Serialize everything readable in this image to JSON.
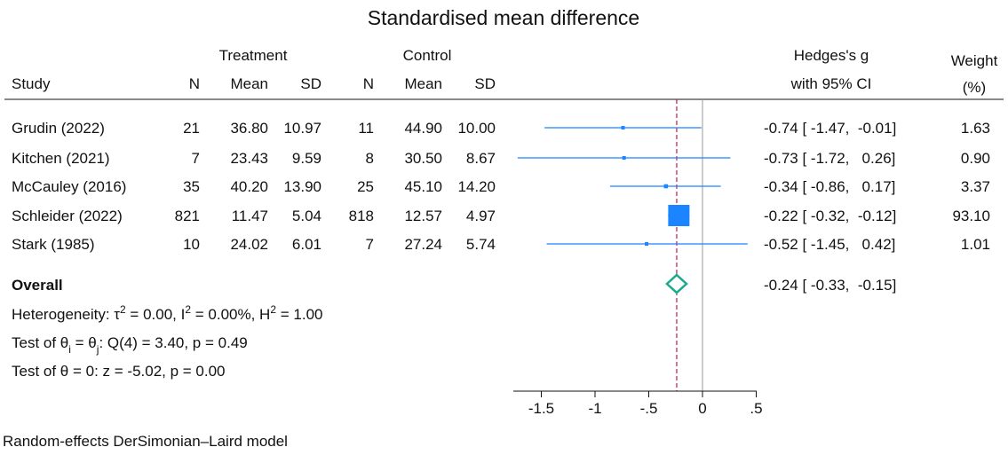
{
  "chart_data": {
    "type": "forest",
    "title": "Standardised mean difference",
    "column_headers": {
      "group_treatment": "Treatment",
      "group_control": "Control",
      "study": "Study",
      "n1": "N",
      "mean1": "Mean",
      "sd1": "SD",
      "n2": "N",
      "mean2": "Mean",
      "sd2": "SD",
      "effect_line1": "Hedges's g",
      "effect_line2": "with 95% CI",
      "weight_line1": "Weight",
      "weight_line2": "(%)"
    },
    "studies": [
      {
        "study": "Grudin (2022)",
        "n1": "21",
        "mean1": "36.80",
        "sd1": "10.97",
        "n2": "11",
        "mean2": "44.90",
        "sd2": "10.00",
        "g": -0.74,
        "lo": -1.47,
        "hi": -0.01,
        "ci_text": "-0.74 [ -1.47,  -0.01]",
        "weight": 1.63,
        "weight_text": "1.63"
      },
      {
        "study": "Kitchen (2021)",
        "n1": "7",
        "mean1": "23.43",
        "sd1": "9.59",
        "n2": "8",
        "mean2": "30.50",
        "sd2": "8.67",
        "g": -0.73,
        "lo": -1.72,
        "hi": 0.26,
        "ci_text": "-0.73 [ -1.72,   0.26]",
        "weight": 0.9,
        "weight_text": "0.90"
      },
      {
        "study": "McCauley (2016)",
        "n1": "35",
        "mean1": "40.20",
        "sd1": "13.90",
        "n2": "25",
        "mean2": "45.10",
        "sd2": "14.20",
        "g": -0.34,
        "lo": -0.86,
        "hi": 0.17,
        "ci_text": "-0.34 [ -0.86,   0.17]",
        "weight": 3.37,
        "weight_text": "3.37"
      },
      {
        "study": "Schleider (2022)",
        "n1": "821",
        "mean1": "11.47",
        "sd1": "5.04",
        "n2": "818",
        "mean2": "12.57",
        "sd2": "4.97",
        "g": -0.22,
        "lo": -0.32,
        "hi": -0.12,
        "ci_text": "-0.22 [ -0.32,  -0.12]",
        "weight": 93.1,
        "weight_text": "93.10"
      },
      {
        "study": "Stark (1985)",
        "n1": "10",
        "mean1": "24.02",
        "sd1": "6.01",
        "n2": "7",
        "mean2": "27.24",
        "sd2": "5.74",
        "g": -0.52,
        "lo": -1.45,
        "hi": 0.42,
        "ci_text": "-0.52 [ -1.45,   0.42]",
        "weight": 1.01,
        "weight_text": "1.01"
      }
    ],
    "overall": {
      "label": "Overall",
      "g": -0.24,
      "lo": -0.33,
      "hi": -0.15,
      "ci_text": "-0.24 [ -0.33,  -0.15]"
    },
    "heterogeneity": {
      "label": "Heterogeneity: ",
      "tau_text": "τ",
      "i_text": " = 0.00, I",
      "h_text": " = 0.00%, H",
      "end_text": " = 1.00",
      "sup": "2"
    },
    "test_homog": {
      "part1": "Test of θ",
      "sub_i": "i",
      "part2": " = θ",
      "sub_j": "j",
      "part3": ": Q(4) = 3.40, p = 0.49"
    },
    "test_zero": "Test of θ = 0: z = -5.02, p = 0.00",
    "x_ticks": [
      {
        "value": -1.5,
        "label": "-1.5"
      },
      {
        "value": -1,
        "label": "-1"
      },
      {
        "value": -0.5,
        "label": "-.5"
      },
      {
        "value": 0,
        "label": "0"
      },
      {
        "value": 0.5,
        "label": ".5"
      }
    ],
    "no_effect_line": 0,
    "overall_line": -0.24,
    "colors": {
      "study_marker": "#1a85ff",
      "ci_line": "#1a85ff",
      "overall_diamond": "#1aab8a",
      "overall_line": "#c0185a",
      "no_effect_line": "#999999"
    },
    "footnote": "Random-effects DerSimonian–Laird model"
  }
}
